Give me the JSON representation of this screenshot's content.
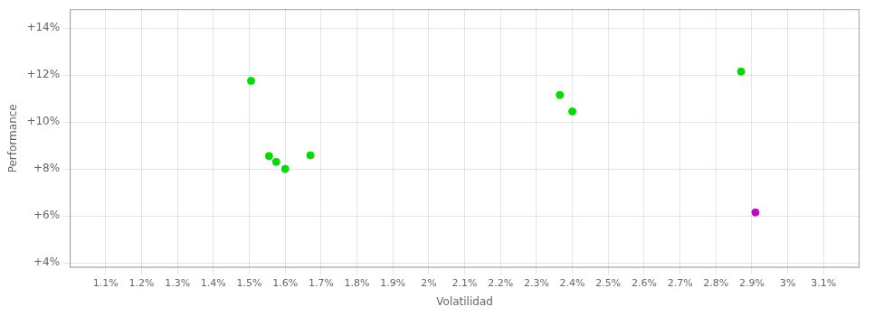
{
  "chart_data": {
    "type": "scatter",
    "xlabel": "Volatilidad",
    "ylabel": "Performance",
    "series": [
      {
        "color": "#00dd00",
        "x": [
          0.01505,
          0.01555,
          0.01575,
          0.016,
          0.0167,
          0.02365,
          0.024,
          0.0287
        ],
        "values": [
          0.1175,
          0.0855,
          0.083,
          0.08,
          0.0858,
          0.1115,
          0.1045,
          0.1215
        ]
      },
      {
        "color": "#cc00cc",
        "x": [
          0.0291
        ],
        "values": [
          0.0615
        ]
      }
    ],
    "xlim": [
      0.01,
      0.032
    ],
    "ylim": [
      0.038,
      0.148
    ],
    "xticks": [
      {
        "value": 0.011,
        "label": "1.1%"
      },
      {
        "value": 0.012,
        "label": "1.2%"
      },
      {
        "value": 0.013,
        "label": "1.3%"
      },
      {
        "value": 0.014,
        "label": "1.4%"
      },
      {
        "value": 0.015,
        "label": "1.5%"
      },
      {
        "value": 0.016,
        "label": "1.6%"
      },
      {
        "value": 0.017,
        "label": "1.7%"
      },
      {
        "value": 0.018,
        "label": "1.8%"
      },
      {
        "value": 0.019,
        "label": "1.9%"
      },
      {
        "value": 0.02,
        "label": "2%"
      },
      {
        "value": 0.021,
        "label": "2.1%"
      },
      {
        "value": 0.022,
        "label": "2.2%"
      },
      {
        "value": 0.023,
        "label": "2.3%"
      },
      {
        "value": 0.024,
        "label": "2.4%"
      },
      {
        "value": 0.025,
        "label": "2.5%"
      },
      {
        "value": 0.026,
        "label": "2.6%"
      },
      {
        "value": 0.027,
        "label": "2.7%"
      },
      {
        "value": 0.028,
        "label": "2.8%"
      },
      {
        "value": 0.029,
        "label": "2.9%"
      },
      {
        "value": 0.03,
        "label": "3%"
      },
      {
        "value": 0.031,
        "label": "3.1%"
      }
    ],
    "yticks": [
      {
        "value": 0.04,
        "label": "+4%"
      },
      {
        "value": 0.06,
        "label": "+6%"
      },
      {
        "value": 0.08,
        "label": "+8%"
      },
      {
        "value": 0.1,
        "label": "+10%"
      },
      {
        "value": 0.12,
        "label": "+12%"
      },
      {
        "value": 0.14,
        "label": "+14%"
      }
    ],
    "grid": true
  }
}
